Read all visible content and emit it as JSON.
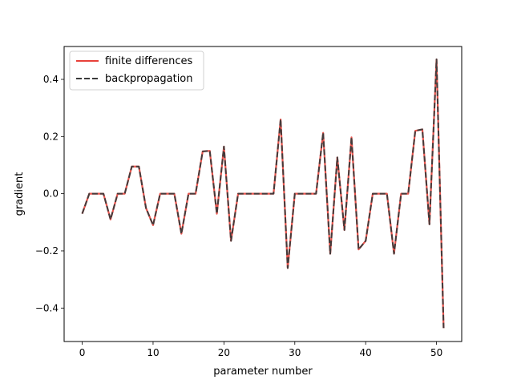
{
  "chart_data": {
    "type": "line",
    "title": "",
    "xlabel": "parameter number",
    "ylabel": "gradient",
    "xlim": [
      -2.55,
      53.55
    ],
    "ylim": [
      -0.517,
      0.515
    ],
    "xticks": [
      0,
      10,
      20,
      30,
      40,
      50
    ],
    "xtick_labels": [
      "0",
      "10",
      "20",
      "30",
      "40",
      "50"
    ],
    "yticks": [
      -0.4,
      -0.2,
      0.0,
      0.2,
      0.4
    ],
    "ytick_labels": [
      "−0.4",
      "−0.2",
      "0.0",
      "0.2",
      "0.4"
    ],
    "grid": false,
    "legend_position": "top-left",
    "x": [
      0,
      1,
      2,
      3,
      4,
      5,
      6,
      7,
      8,
      9,
      10,
      11,
      12,
      13,
      14,
      15,
      16,
      17,
      18,
      19,
      20,
      21,
      22,
      23,
      24,
      25,
      26,
      27,
      28,
      29,
      30,
      31,
      32,
      33,
      34,
      35,
      36,
      37,
      38,
      39,
      40,
      41,
      42,
      43,
      44,
      45,
      46,
      47,
      48,
      49,
      50,
      51
    ],
    "series": [
      {
        "name": "finite differences",
        "color": "#e8413a",
        "style": "solid",
        "values": [
          -0.07,
          0.0,
          0.0,
          0.0,
          -0.09,
          0.0,
          0.0,
          0.095,
          0.095,
          -0.05,
          -0.11,
          0.0,
          0.0,
          0.0,
          -0.14,
          0.0,
          0.0,
          0.148,
          0.15,
          -0.07,
          0.165,
          -0.165,
          0.0,
          0.0,
          0.0,
          0.0,
          0.0,
          0.0,
          0.26,
          -0.26,
          0.0,
          0.0,
          0.0,
          0.0,
          0.213,
          -0.21,
          0.127,
          -0.127,
          0.197,
          -0.195,
          -0.165,
          0.0,
          0.0,
          0.0,
          -0.21,
          0.0,
          0.0,
          0.22,
          0.225,
          -0.107,
          0.47,
          -0.47
        ]
      },
      {
        "name": "backpropagation",
        "color": "#3a3a3a",
        "style": "dashed",
        "values": [
          -0.07,
          0.0,
          0.0,
          0.0,
          -0.09,
          0.0,
          0.0,
          0.095,
          0.095,
          -0.05,
          -0.11,
          0.0,
          0.0,
          0.0,
          -0.14,
          0.0,
          0.0,
          0.148,
          0.15,
          -0.07,
          0.165,
          -0.165,
          0.0,
          0.0,
          0.0,
          0.0,
          0.0,
          0.0,
          0.26,
          -0.26,
          0.0,
          0.0,
          0.0,
          0.0,
          0.213,
          -0.21,
          0.127,
          -0.127,
          0.197,
          -0.195,
          -0.165,
          0.0,
          0.0,
          0.0,
          -0.21,
          0.0,
          0.0,
          0.22,
          0.225,
          -0.107,
          0.47,
          -0.47
        ]
      }
    ]
  }
}
